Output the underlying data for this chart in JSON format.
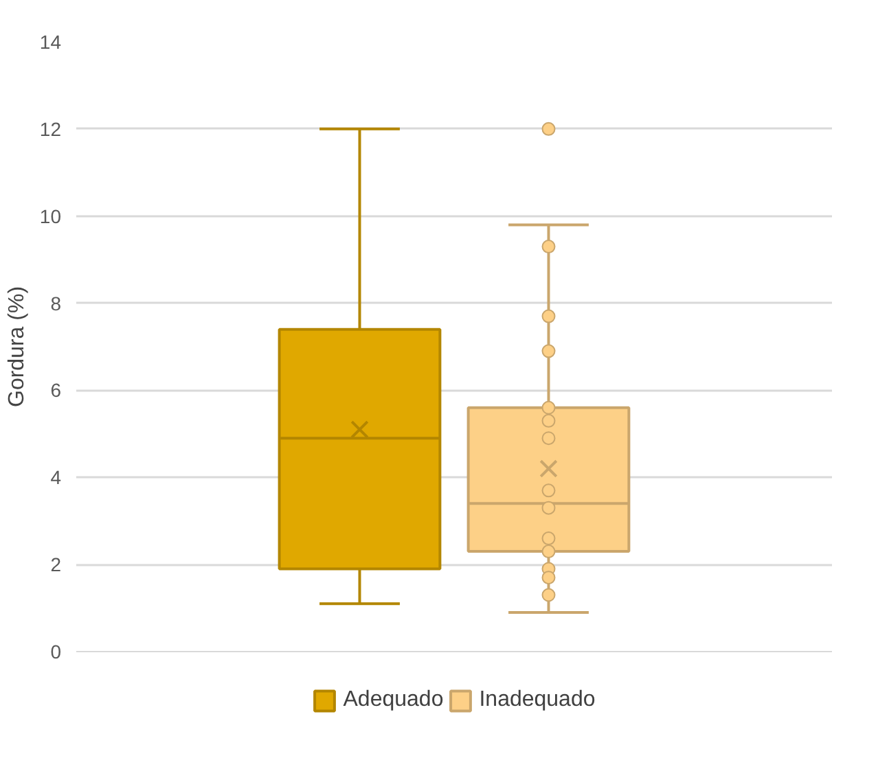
{
  "chart_data": {
    "type": "box",
    "ylabel": "Gordura (%)",
    "categories": [
      null
    ],
    "ylim": [
      0,
      14
    ],
    "yticks": [
      0,
      2,
      4,
      6,
      8,
      10,
      12,
      14
    ],
    "grid": "y",
    "legend": "bottom",
    "tick_labels": "y",
    "series": [
      {
        "name": "Adequado",
        "color": "#e0a800",
        "boxes": [
          {
            "low": 1.1,
            "q1": 1.9,
            "median": 4.9,
            "q3": 7.4,
            "high": 12.0,
            "mean": 5.1
          }
        ]
      },
      {
        "name": "Inadequado",
        "color": "#fdd087",
        "boxes": [
          {
            "low": 0.9,
            "q1": 2.3,
            "median": 3.4,
            "q3": 5.6,
            "high": 9.8,
            "mean": 4.2,
            "outliers": [
              12.0
            ]
          }
        ]
      },
      {
        "type": "scatter",
        "color": "#fdd087",
        "x": [
          null,
          null,
          null,
          null,
          null,
          null,
          null,
          null,
          null,
          null,
          null,
          null,
          null
        ],
        "values": [
          9.3,
          7.7,
          6.9,
          5.6,
          5.3,
          4.9,
          3.7,
          3.3,
          2.6,
          2.3,
          1.9,
          1.7,
          1.3
        ]
      }
    ]
  }
}
